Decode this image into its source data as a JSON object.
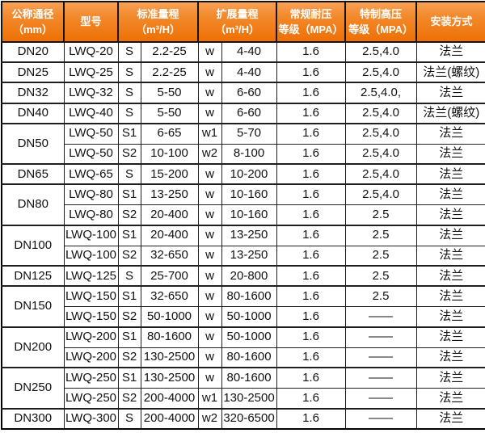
{
  "colors": {
    "header_bg_top": "#f9a155",
    "header_bg_bottom": "#ee7004",
    "header_text": "#ffffff",
    "border": "#000000",
    "inner_row_divider": "#6a6a6a",
    "body_text": "#111111",
    "body_bg": "#ffffff"
  },
  "header_cells": [
    {
      "id": "dn",
      "span": 1,
      "lines": [
        "公称通径",
        "（mm）"
      ]
    },
    {
      "id": "model",
      "span": 1,
      "lines": [
        "型号"
      ]
    },
    {
      "id": "standard-range",
      "span": 2,
      "lines": [
        "标准量程",
        "（m³/H）"
      ]
    },
    {
      "id": "extended-range",
      "span": 2,
      "lines": [
        "扩展量程",
        "（m³/H）"
      ]
    },
    {
      "id": "normal-pressure",
      "span": 1,
      "lines": [
        "常规耐压",
        "等级（MPA）"
      ]
    },
    {
      "id": "special-pressure",
      "span": 1,
      "lines": [
        "特制高压",
        "等级（MPA）"
      ]
    },
    {
      "id": "installation",
      "span": 1,
      "lines": [
        "安装方式"
      ]
    }
  ],
  "chart_data": {
    "type": "table",
    "columns": [
      "公称通径（mm）",
      "型号",
      "标准量程（m³/H）",
      "标准量程（m³/H）",
      "扩展量程（m³/H）",
      "扩展量程（m³/H）",
      "常规耐压等级（MPA）",
      "特制高压等级（MPA）",
      "安装方式"
    ],
    "rows": [
      [
        "DN20",
        "LWQ-20",
        "S",
        "2.2-25",
        "w",
        "4-40",
        "1.6",
        "2.5,4.0",
        "法兰"
      ],
      [
        "DN25",
        "LWQ-25",
        "S",
        "2.2-25",
        "w",
        "4-40",
        "1.6",
        "2.5,4.0",
        "法兰(螺纹)"
      ],
      [
        "DN32",
        "LWQ-32",
        "S",
        "5-50",
        "w",
        "6-60",
        "1.6",
        "2.5,4.0,",
        "法兰"
      ],
      [
        "DN40",
        "LWQ-40",
        "S",
        "5-50",
        "w",
        "6-60",
        "1.6",
        "2.5,4.0",
        "法兰(螺纹)"
      ],
      [
        "DN50",
        "LWQ-50",
        "S1",
        "6-65",
        "w1",
        "5-70",
        "1.6",
        "2.5,4.0",
        "法兰"
      ],
      [
        "DN50",
        "LWQ-50",
        "S2",
        "10-100",
        "w2",
        "8-100",
        "1.6",
        "2.5,4.0",
        "法兰"
      ],
      [
        "DN65",
        "LWQ-65",
        "S",
        "15-200",
        "w",
        "10-200",
        "1.6",
        "2.5,4.0",
        "法兰"
      ],
      [
        "DN80",
        "LWQ-80",
        "S1",
        "13-250",
        "w",
        "10-160",
        "1.6",
        "2.5,4.0",
        "法兰"
      ],
      [
        "DN80",
        "LWQ-80",
        "S2",
        "20-400",
        "w",
        "10-160",
        "1.6",
        "2.5",
        "法兰"
      ],
      [
        "DN100",
        "LWQ-100",
        "S1",
        "20-400",
        "w",
        "13-250",
        "1.6",
        "2.5",
        "法兰"
      ],
      [
        "DN100",
        "LWQ-100",
        "S2",
        "32-650",
        "w",
        "13-250",
        "1.6",
        "2.5",
        "法兰"
      ],
      [
        "DN125",
        "LWQ-125",
        "S",
        "25-700",
        "w",
        "20-800",
        "1.6",
        "2.5",
        "法兰"
      ],
      [
        "DN150",
        "LWQ-150",
        "S1",
        "32-650",
        "w",
        "80-1600",
        "1.6",
        "2.5",
        "法兰"
      ],
      [
        "DN150",
        "LWQ-150",
        "S2",
        "50-1000",
        "w",
        "50-1000",
        "1.6",
        "——",
        "法兰"
      ],
      [
        "DN200",
        "LWQ-200",
        "S1",
        "80-1600",
        "w",
        "50-1000",
        "1.6",
        "——",
        "法兰"
      ],
      [
        "DN200",
        "LWQ-200",
        "S2",
        "130-2500",
        "w",
        "80-1600",
        "1.6",
        "——",
        "法兰"
      ],
      [
        "DN250",
        "LWQ-250",
        "S1",
        "130-2500",
        "w",
        "80-1600",
        "1.6",
        "——",
        "法兰"
      ],
      [
        "DN250",
        "LWQ-250",
        "S2",
        "200-4000",
        "w1",
        "130-2500",
        "1.6",
        "——",
        "法兰"
      ],
      [
        "DN300",
        "LWQ-300",
        "S",
        "200-4000",
        "w2",
        "320-6500",
        "1.6",
        "——",
        "法兰"
      ]
    ]
  }
}
